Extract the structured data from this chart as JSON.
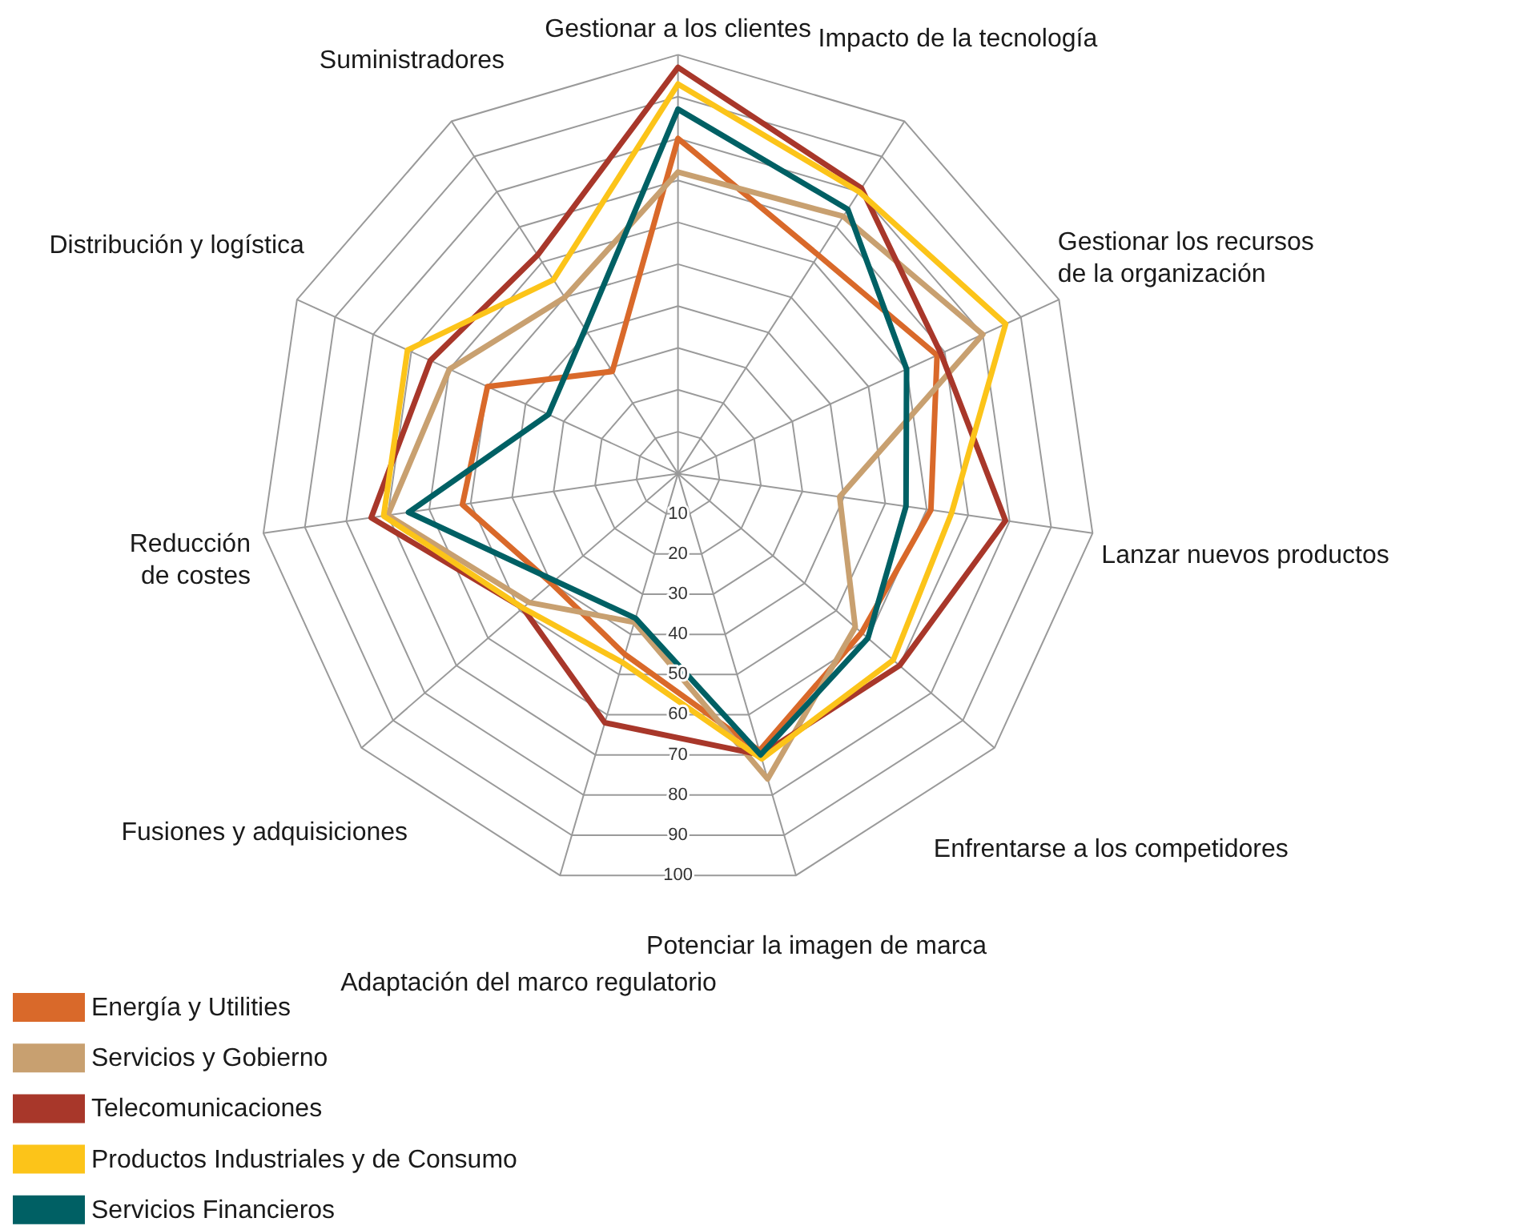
{
  "chart_data": {
    "type": "radar",
    "categories": [
      "Gestionar a los clientes",
      "Impacto de la tecnología",
      "Gestionar los recursos\nde la organización",
      "Lanzar nuevos productos",
      "Enfrentarse a los competidores",
      "Potenciar la imagen de marca",
      "Adaptación del marco regulatorio",
      "Fusiones y adquisiciones",
      "Reducción\nde costes",
      "Distribución y logística",
      "Suministradores"
    ],
    "ylim": [
      0,
      100
    ],
    "yticks": [
      10,
      20,
      30,
      40,
      50,
      60,
      70,
      80,
      90,
      100
    ],
    "grid": true,
    "legend": "bottom left",
    "series": [
      {
        "name": "Energía y Utilities",
        "color": "#d9692a",
        "values": [
          80,
          62,
          68,
          61,
          58,
          69,
          45,
          40,
          52,
          50,
          29
        ]
      },
      {
        "name": "Servicios y Gobierno",
        "color": "#c8a070",
        "values": [
          72,
          73,
          80,
          39,
          56,
          76,
          37,
          47,
          70,
          60,
          50
        ]
      },
      {
        "name": "Telecomunicaciones",
        "color": "#a8372a",
        "values": [
          97,
          81,
          69,
          79,
          70,
          70,
          62,
          49,
          74,
          65,
          62
        ]
      },
      {
        "name": "Productos Industriales y de Consumo",
        "color": "#fcc419",
        "values": [
          93,
          80,
          86,
          66,
          68,
          71,
          47,
          49,
          71,
          71,
          55
        ]
      },
      {
        "name": "Servicios Financieros",
        "color": "#006064",
        "values": [
          87,
          75,
          60,
          55,
          60,
          70,
          36,
          39,
          65,
          34,
          41
        ]
      }
    ]
  }
}
